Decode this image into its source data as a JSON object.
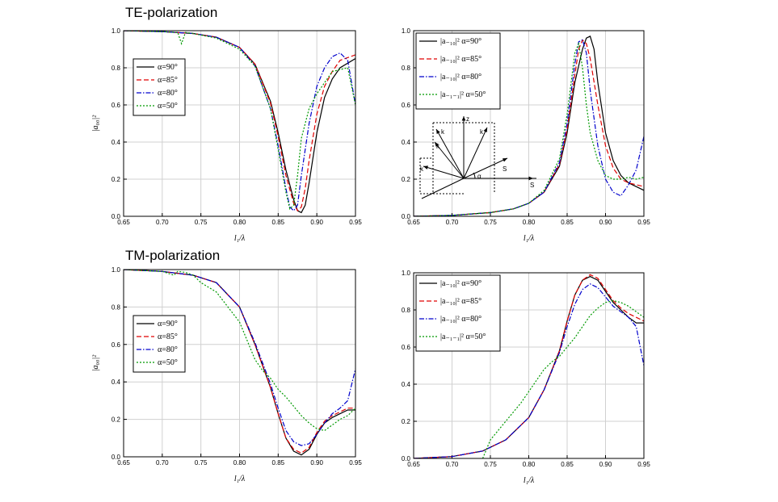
{
  "titles": {
    "te": "TE-polarization",
    "tm": "TM-polarization"
  },
  "colors": {
    "a90": "#000000",
    "a85": "#e00000",
    "a80": "#0000cc",
    "a50": "#009900",
    "grid": "#d0d0d0"
  },
  "inset": {
    "labels": [
      "z",
      "k",
      "k",
      "k",
      "k",
      "S",
      "S",
      "α"
    ]
  },
  "chart_data": [
    {
      "type": "line",
      "panel": "TE-left",
      "xlabel": "l₁/λ",
      "ylabel": "|a₀₀|²",
      "xlim": [
        0.65,
        0.95
      ],
      "ylim": [
        0.0,
        1.0
      ],
      "xticks": [
        "0.65",
        "0.70",
        "0.75",
        "0.80",
        "0.85",
        "0.90",
        "0.95"
      ],
      "yticks": [
        "0.0",
        "0.2",
        "0.4",
        "0.6",
        "0.8",
        "1.0"
      ],
      "grid": true,
      "legend_position": "middle-left",
      "series": [
        {
          "name": "α=90°",
          "color_key": "a90",
          "dash": "solid",
          "x": [
            0.65,
            0.7,
            0.74,
            0.77,
            0.8,
            0.82,
            0.84,
            0.85,
            0.86,
            0.87,
            0.875,
            0.88,
            0.885,
            0.89,
            0.9,
            0.91,
            0.92,
            0.93,
            0.95
          ],
          "y": [
            1.0,
            0.995,
            0.985,
            0.965,
            0.91,
            0.82,
            0.62,
            0.45,
            0.25,
            0.09,
            0.03,
            0.02,
            0.06,
            0.18,
            0.45,
            0.64,
            0.74,
            0.8,
            0.85
          ]
        },
        {
          "name": "α=85°",
          "color_key": "a85",
          "dash": "dashed",
          "x": [
            0.65,
            0.7,
            0.74,
            0.77,
            0.8,
            0.82,
            0.84,
            0.85,
            0.86,
            0.87,
            0.875,
            0.88,
            0.885,
            0.89,
            0.9,
            0.91,
            0.92,
            0.93,
            0.95
          ],
          "y": [
            1.0,
            0.995,
            0.985,
            0.965,
            0.91,
            0.82,
            0.61,
            0.43,
            0.22,
            0.07,
            0.03,
            0.05,
            0.15,
            0.3,
            0.55,
            0.7,
            0.78,
            0.84,
            0.87
          ]
        },
        {
          "name": "α=80°",
          "color_key": "a80",
          "dash": "dashdot",
          "x": [
            0.65,
            0.7,
            0.74,
            0.77,
            0.8,
            0.82,
            0.84,
            0.85,
            0.86,
            0.865,
            0.87,
            0.875,
            0.88,
            0.89,
            0.9,
            0.91,
            0.92,
            0.93,
            0.94,
            0.95
          ],
          "y": [
            1.0,
            0.995,
            0.985,
            0.965,
            0.91,
            0.81,
            0.58,
            0.38,
            0.15,
            0.05,
            0.03,
            0.06,
            0.22,
            0.5,
            0.7,
            0.8,
            0.86,
            0.88,
            0.84,
            0.6
          ]
        },
        {
          "name": "α=50°",
          "color_key": "a50",
          "dash": "dotted",
          "x": [
            0.65,
            0.7,
            0.72,
            0.725,
            0.73,
            0.74,
            0.77,
            0.8,
            0.82,
            0.84,
            0.85,
            0.86,
            0.865,
            0.87,
            0.875,
            0.88,
            0.89,
            0.9,
            0.92,
            0.94,
            0.95
          ],
          "y": [
            1.0,
            0.995,
            0.99,
            0.93,
            0.99,
            0.985,
            0.96,
            0.9,
            0.81,
            0.58,
            0.36,
            0.13,
            0.04,
            0.06,
            0.22,
            0.42,
            0.58,
            0.66,
            0.78,
            0.8,
            0.6
          ]
        }
      ]
    },
    {
      "type": "line",
      "panel": "TE-right",
      "xlabel": "l₁/λ",
      "ylabel": "",
      "xlim": [
        0.65,
        0.95
      ],
      "ylim": [
        0.0,
        1.0
      ],
      "xticks": [
        "0.65",
        "0.70",
        "0.75",
        "0.80",
        "0.85",
        "0.90",
        "0.95"
      ],
      "yticks": [
        "0.0",
        "0.2",
        "0.4",
        "0.6",
        "0.8",
        "1.0"
      ],
      "grid": true,
      "legend_position": "top-left",
      "series": [
        {
          "name": "|a₋₁₀|² α=90°",
          "color_key": "a90",
          "dash": "solid",
          "x": [
            0.65,
            0.7,
            0.75,
            0.78,
            0.8,
            0.82,
            0.84,
            0.85,
            0.86,
            0.87,
            0.875,
            0.88,
            0.885,
            0.89,
            0.9,
            0.91,
            0.92,
            0.93,
            0.95
          ],
          "y": [
            0.0,
            0.005,
            0.02,
            0.04,
            0.07,
            0.13,
            0.27,
            0.45,
            0.72,
            0.9,
            0.96,
            0.97,
            0.9,
            0.72,
            0.45,
            0.3,
            0.22,
            0.18,
            0.14
          ]
        },
        {
          "name": "|a₋₁₀|² α=85°",
          "color_key": "a85",
          "dash": "dashed",
          "x": [
            0.65,
            0.7,
            0.75,
            0.78,
            0.8,
            0.82,
            0.84,
            0.85,
            0.86,
            0.865,
            0.87,
            0.875,
            0.88,
            0.89,
            0.9,
            0.91,
            0.92,
            0.93,
            0.95
          ],
          "y": [
            0.0,
            0.005,
            0.02,
            0.04,
            0.07,
            0.13,
            0.28,
            0.47,
            0.76,
            0.9,
            0.95,
            0.93,
            0.85,
            0.6,
            0.38,
            0.26,
            0.2,
            0.18,
            0.16
          ]
        },
        {
          "name": "|a₋₁₀|² α=80°",
          "color_key": "a80",
          "dash": "dashdot",
          "x": [
            0.65,
            0.7,
            0.75,
            0.78,
            0.8,
            0.82,
            0.84,
            0.85,
            0.86,
            0.865,
            0.87,
            0.875,
            0.88,
            0.89,
            0.9,
            0.91,
            0.92,
            0.93,
            0.94,
            0.95
          ],
          "y": [
            0.0,
            0.005,
            0.02,
            0.04,
            0.07,
            0.13,
            0.29,
            0.5,
            0.82,
            0.94,
            0.95,
            0.88,
            0.68,
            0.38,
            0.2,
            0.13,
            0.11,
            0.17,
            0.25,
            0.43
          ]
        },
        {
          "name": "|a₋₁₋₁|² α=50°",
          "color_key": "a50",
          "dash": "dotted",
          "x": [
            0.65,
            0.7,
            0.75,
            0.78,
            0.8,
            0.82,
            0.84,
            0.85,
            0.86,
            0.865,
            0.87,
            0.875,
            0.88,
            0.89,
            0.9,
            0.91,
            0.92,
            0.93,
            0.94,
            0.95
          ],
          "y": [
            0.0,
            0.005,
            0.02,
            0.04,
            0.07,
            0.14,
            0.31,
            0.55,
            0.88,
            0.93,
            0.8,
            0.6,
            0.45,
            0.3,
            0.22,
            0.2,
            0.2,
            0.21,
            0.2,
            0.21
          ]
        }
      ]
    },
    {
      "type": "line",
      "panel": "TM-left",
      "xlabel": "l₁/λ",
      "ylabel": "|a₀₀|²",
      "xlim": [
        0.65,
        0.95
      ],
      "ylim": [
        0.0,
        1.0
      ],
      "xticks": [
        "0.65",
        "0.70",
        "0.75",
        "0.80",
        "0.85",
        "0.90",
        "0.95"
      ],
      "yticks": [
        "0.0",
        "0.2",
        "0.4",
        "0.6",
        "0.8",
        "1.0"
      ],
      "grid": true,
      "legend_position": "middle-left",
      "series": [
        {
          "name": "α=90°",
          "color_key": "a90",
          "dash": "solid",
          "x": [
            0.65,
            0.7,
            0.74,
            0.77,
            0.8,
            0.82,
            0.84,
            0.85,
            0.86,
            0.87,
            0.88,
            0.89,
            0.9,
            0.91,
            0.92,
            0.93,
            0.94,
            0.95
          ],
          "y": [
            1.0,
            0.99,
            0.97,
            0.93,
            0.8,
            0.6,
            0.37,
            0.23,
            0.1,
            0.03,
            0.01,
            0.04,
            0.12,
            0.18,
            0.21,
            0.23,
            0.25,
            0.25
          ]
        },
        {
          "name": "α=85°",
          "color_key": "a85",
          "dash": "dashed",
          "x": [
            0.65,
            0.7,
            0.74,
            0.77,
            0.8,
            0.82,
            0.84,
            0.85,
            0.86,
            0.87,
            0.88,
            0.89,
            0.9,
            0.91,
            0.92,
            0.93,
            0.94,
            0.95
          ],
          "y": [
            1.0,
            0.99,
            0.97,
            0.93,
            0.8,
            0.6,
            0.37,
            0.23,
            0.1,
            0.04,
            0.02,
            0.05,
            0.13,
            0.19,
            0.22,
            0.24,
            0.26,
            0.26
          ]
        },
        {
          "name": "α=80°",
          "color_key": "a80",
          "dash": "dashdot",
          "x": [
            0.65,
            0.7,
            0.74,
            0.77,
            0.8,
            0.82,
            0.84,
            0.85,
            0.86,
            0.87,
            0.88,
            0.89,
            0.9,
            0.91,
            0.92,
            0.93,
            0.94,
            0.95
          ],
          "y": [
            1.0,
            0.99,
            0.97,
            0.93,
            0.8,
            0.61,
            0.39,
            0.26,
            0.14,
            0.08,
            0.06,
            0.07,
            0.12,
            0.18,
            0.23,
            0.26,
            0.3,
            0.47
          ]
        },
        {
          "name": "α=50°",
          "color_key": "a50",
          "dash": "dotted",
          "x": [
            0.65,
            0.7,
            0.715,
            0.72,
            0.73,
            0.74,
            0.75,
            0.77,
            0.8,
            0.82,
            0.83,
            0.84,
            0.85,
            0.86,
            0.87,
            0.88,
            0.89,
            0.9,
            0.91,
            0.92,
            0.93,
            0.94,
            0.95
          ],
          "y": [
            1.0,
            0.99,
            0.97,
            0.99,
            0.985,
            0.97,
            0.93,
            0.88,
            0.72,
            0.52,
            0.46,
            0.42,
            0.36,
            0.32,
            0.27,
            0.22,
            0.18,
            0.15,
            0.14,
            0.17,
            0.2,
            0.22,
            0.26
          ]
        }
      ]
    },
    {
      "type": "line",
      "panel": "TM-right",
      "xlabel": "l₁/λ",
      "ylabel": "",
      "xlim": [
        0.65,
        0.95
      ],
      "ylim": [
        0.0,
        1.0
      ],
      "xticks": [
        "0.65",
        "0.70",
        "0.75",
        "0.80",
        "0.85",
        "0.90",
        "0.95"
      ],
      "yticks": [
        "0.0",
        "0.2",
        "0.4",
        "0.6",
        "0.8",
        "1.0"
      ],
      "grid": true,
      "legend_position": "top-left",
      "series": [
        {
          "name": "|a₋₁₀|² α=90°",
          "color_key": "a90",
          "dash": "solid",
          "x": [
            0.65,
            0.7,
            0.74,
            0.77,
            0.8,
            0.82,
            0.84,
            0.85,
            0.86,
            0.87,
            0.88,
            0.89,
            0.9,
            0.91,
            0.92,
            0.93,
            0.94,
            0.95
          ],
          "y": [
            0.0,
            0.01,
            0.04,
            0.1,
            0.22,
            0.37,
            0.58,
            0.74,
            0.88,
            0.96,
            0.98,
            0.96,
            0.9,
            0.84,
            0.8,
            0.76,
            0.73,
            0.73
          ]
        },
        {
          "name": "|a₋₁₀|² α=85°",
          "color_key": "a85",
          "dash": "dashed",
          "x": [
            0.65,
            0.7,
            0.74,
            0.77,
            0.8,
            0.82,
            0.84,
            0.85,
            0.86,
            0.87,
            0.88,
            0.89,
            0.9,
            0.91,
            0.92,
            0.93,
            0.94,
            0.95
          ],
          "y": [
            0.0,
            0.01,
            0.04,
            0.1,
            0.22,
            0.37,
            0.58,
            0.74,
            0.88,
            0.96,
            0.99,
            0.97,
            0.91,
            0.85,
            0.81,
            0.78,
            0.76,
            0.74
          ]
        },
        {
          "name": "|a₋₁₀|² α=80°",
          "color_key": "a80",
          "dash": "dashdot",
          "x": [
            0.65,
            0.7,
            0.74,
            0.77,
            0.8,
            0.82,
            0.84,
            0.85,
            0.86,
            0.87,
            0.88,
            0.89,
            0.9,
            0.91,
            0.92,
            0.93,
            0.94,
            0.95
          ],
          "y": [
            0.0,
            0.01,
            0.04,
            0.1,
            0.22,
            0.37,
            0.57,
            0.71,
            0.83,
            0.91,
            0.94,
            0.92,
            0.87,
            0.82,
            0.79,
            0.76,
            0.71,
            0.5
          ]
        },
        {
          "name": "|a₋₁₋₁|² α=50°",
          "color_key": "a50",
          "dash": "dotted",
          "x": [
            0.74,
            0.75,
            0.77,
            0.79,
            0.8,
            0.82,
            0.83,
            0.84,
            0.85,
            0.86,
            0.87,
            0.88,
            0.89,
            0.9,
            0.91,
            0.92,
            0.93,
            0.94,
            0.95
          ],
          "y": [
            0.0,
            0.1,
            0.2,
            0.3,
            0.36,
            0.48,
            0.52,
            0.55,
            0.6,
            0.65,
            0.71,
            0.77,
            0.81,
            0.84,
            0.85,
            0.84,
            0.82,
            0.79,
            0.76
          ]
        }
      ]
    }
  ]
}
